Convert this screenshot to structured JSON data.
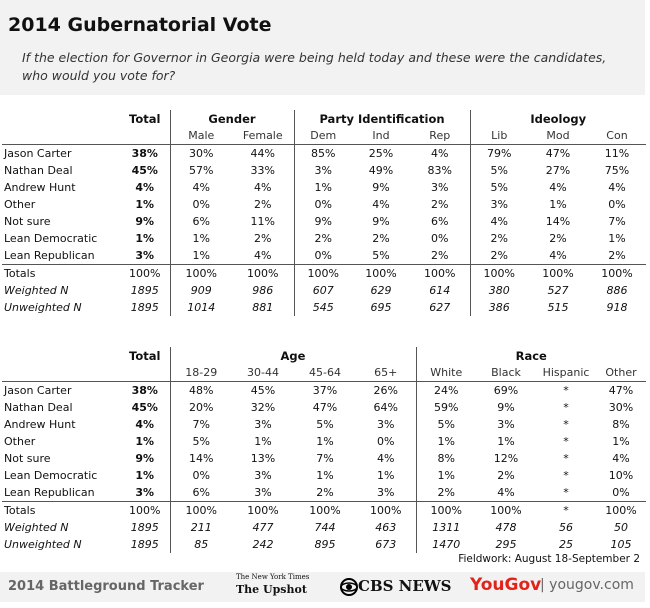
{
  "header": {
    "title": "2014 Gubernatorial Vote",
    "subtitle": "If the election for Governor in Georgia were being held today and these were the candidates, who would you vote for?"
  },
  "tables": [
    {
      "total_label": "Total",
      "groups": [
        {
          "label": "Gender",
          "columns": [
            "Male",
            "Female"
          ]
        },
        {
          "label": "Party Identification",
          "columns": [
            "Dem",
            "Ind",
            "Rep"
          ]
        },
        {
          "label": "Ideology",
          "columns": [
            "Lib",
            "Mod",
            "Con"
          ]
        }
      ],
      "rows": [
        {
          "label": "Jason Carter",
          "values": [
            "38%",
            "30%",
            "44%",
            "85%",
            "25%",
            "4%",
            "79%",
            "47%",
            "11%"
          ]
        },
        {
          "label": "Nathan Deal",
          "values": [
            "45%",
            "57%",
            "33%",
            "3%",
            "49%",
            "83%",
            "5%",
            "27%",
            "75%"
          ]
        },
        {
          "label": "Andrew Hunt",
          "values": [
            "4%",
            "4%",
            "4%",
            "1%",
            "9%",
            "3%",
            "5%",
            "4%",
            "4%"
          ]
        },
        {
          "label": "Other",
          "values": [
            "1%",
            "0%",
            "2%",
            "0%",
            "4%",
            "2%",
            "3%",
            "1%",
            "0%"
          ]
        },
        {
          "label": "Not sure",
          "values": [
            "9%",
            "6%",
            "11%",
            "9%",
            "9%",
            "6%",
            "4%",
            "14%",
            "7%"
          ]
        },
        {
          "label": "Lean Democratic",
          "values": [
            "1%",
            "1%",
            "2%",
            "2%",
            "2%",
            "0%",
            "2%",
            "2%",
            "1%"
          ]
        },
        {
          "label": "Lean Republican",
          "values": [
            "3%",
            "1%",
            "4%",
            "0%",
            "5%",
            "2%",
            "2%",
            "4%",
            "2%"
          ]
        },
        {
          "label": "Totals",
          "values": [
            "100%",
            "100%",
            "100%",
            "100%",
            "100%",
            "100%",
            "100%",
            "100%",
            "100%"
          ]
        },
        {
          "label": "Weighted N",
          "values": [
            "1895",
            "909",
            "986",
            "607",
            "629",
            "614",
            "380",
            "527",
            "886"
          ]
        },
        {
          "label": "Unweighted N",
          "values": [
            "1895",
            "1014",
            "881",
            "545",
            "695",
            "627",
            "386",
            "515",
            "918"
          ]
        }
      ]
    },
    {
      "total_label": "Total",
      "groups": [
        {
          "label": "Age",
          "columns": [
            "18-29",
            "30-44",
            "45-64",
            "65+"
          ]
        },
        {
          "label": "Race",
          "columns": [
            "White",
            "Black",
            "Hispanic",
            "Other"
          ]
        }
      ],
      "rows": [
        {
          "label": "Jason Carter",
          "values": [
            "38%",
            "48%",
            "45%",
            "37%",
            "26%",
            "24%",
            "69%",
            "*",
            "47%"
          ]
        },
        {
          "label": "Nathan Deal",
          "values": [
            "45%",
            "20%",
            "32%",
            "47%",
            "64%",
            "59%",
            "9%",
            "*",
            "30%"
          ]
        },
        {
          "label": "Andrew Hunt",
          "values": [
            "4%",
            "7%",
            "3%",
            "5%",
            "3%",
            "5%",
            "3%",
            "*",
            "8%"
          ]
        },
        {
          "label": "Other",
          "values": [
            "1%",
            "5%",
            "1%",
            "1%",
            "0%",
            "1%",
            "1%",
            "*",
            "1%"
          ]
        },
        {
          "label": "Not sure",
          "values": [
            "9%",
            "14%",
            "13%",
            "7%",
            "4%",
            "8%",
            "12%",
            "*",
            "4%"
          ]
        },
        {
          "label": "Lean Democratic",
          "values": [
            "1%",
            "0%",
            "3%",
            "1%",
            "1%",
            "1%",
            "2%",
            "*",
            "10%"
          ]
        },
        {
          "label": "Lean Republican",
          "values": [
            "3%",
            "6%",
            "3%",
            "2%",
            "3%",
            "2%",
            "4%",
            "*",
            "0%"
          ]
        },
        {
          "label": "Totals",
          "values": [
            "100%",
            "100%",
            "100%",
            "100%",
            "100%",
            "100%",
            "100%",
            "*",
            "100%"
          ]
        },
        {
          "label": "Weighted N",
          "values": [
            "1895",
            "211",
            "477",
            "744",
            "463",
            "1311",
            "478",
            "56",
            "50"
          ]
        },
        {
          "label": "Unweighted N",
          "values": [
            "1895",
            "85",
            "242",
            "895",
            "673",
            "1470",
            "295",
            "25",
            "105"
          ]
        }
      ]
    }
  ],
  "fieldwork": "Fieldwork: August 18-September 2",
  "footer": {
    "tracker": "2014 Battleground Tracker",
    "nyt": "The New York Times",
    "upshot": "The Upshot",
    "cbs": "CBS NEWS",
    "yougov": "YouGov",
    "site": "| yougov.com"
  }
}
